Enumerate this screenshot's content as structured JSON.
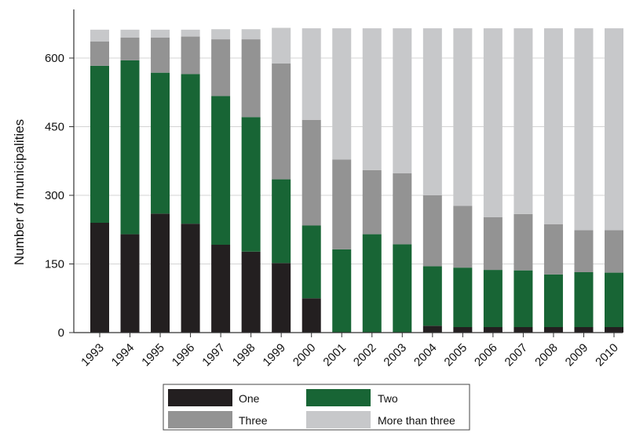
{
  "chart_data": {
    "type": "bar",
    "stacked": true,
    "title": "",
    "xlabel": "",
    "ylabel": "Number of municipalities",
    "ylim": [
      0,
      675
    ],
    "yticks": [
      0,
      150,
      300,
      450,
      600
    ],
    "grid": true,
    "legend_position": "bottom",
    "categories": [
      "1993",
      "1994",
      "1995",
      "1996",
      "1997",
      "1998",
      "1999",
      "2000",
      "2001",
      "2002",
      "2003",
      "2004",
      "2005",
      "2006",
      "2007",
      "2008",
      "2009",
      "2010"
    ],
    "series": [
      {
        "name": "One",
        "color": "#231f20",
        "values": [
          240,
          215,
          260,
          238,
          192,
          177,
          152,
          75,
          0,
          0,
          0,
          15,
          12,
          12,
          12,
          12,
          12,
          12
        ]
      },
      {
        "name": "Two",
        "color": "#186535",
        "values": [
          343,
          380,
          308,
          327,
          325,
          294,
          183,
          159,
          182,
          215,
          193,
          130,
          130,
          125,
          124,
          115,
          120,
          119
        ]
      },
      {
        "name": "Three",
        "color": "#939393",
        "values": [
          53,
          50,
          77,
          82,
          124,
          170,
          253,
          231,
          196,
          140,
          155,
          155,
          135,
          115,
          123,
          110,
          92,
          93
        ]
      },
      {
        "name": "More than three",
        "color": "#c7c8ca",
        "values": [
          26,
          17,
          17,
          15,
          22,
          22,
          78,
          200,
          287,
          310,
          317,
          365,
          388,
          413,
          406,
          428,
          441,
          441
        ]
      }
    ]
  }
}
